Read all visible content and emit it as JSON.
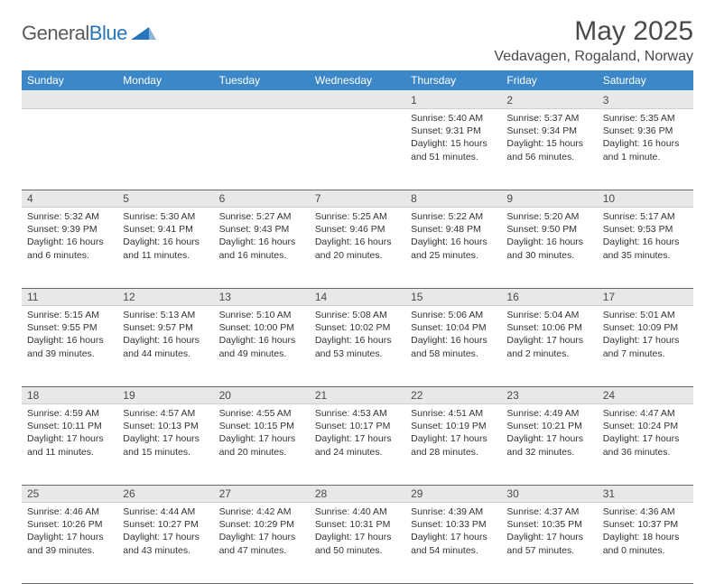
{
  "logo": {
    "general": "General",
    "blue": "Blue"
  },
  "title": "May 2025",
  "location": "Vedavagen, Rogaland, Norway",
  "headers": [
    "Sunday",
    "Monday",
    "Tuesday",
    "Wednesday",
    "Thursday",
    "Friday",
    "Saturday"
  ],
  "colors": {
    "header_bg": "#3b87c8",
    "header_fg": "#ffffff",
    "daynum_bg": "#e8e8e8",
    "text": "#333333",
    "title": "#4a4a4a",
    "rule": "#6b6b6b",
    "logo_shape": "#2776bb"
  },
  "weeks": [
    [
      null,
      null,
      null,
      null,
      {
        "n": "1",
        "sr": "5:40 AM",
        "ss": "9:31 PM",
        "dl": "15 hours and 51 minutes."
      },
      {
        "n": "2",
        "sr": "5:37 AM",
        "ss": "9:34 PM",
        "dl": "15 hours and 56 minutes."
      },
      {
        "n": "3",
        "sr": "5:35 AM",
        "ss": "9:36 PM",
        "dl": "16 hours and 1 minute."
      }
    ],
    [
      {
        "n": "4",
        "sr": "5:32 AM",
        "ss": "9:39 PM",
        "dl": "16 hours and 6 minutes."
      },
      {
        "n": "5",
        "sr": "5:30 AM",
        "ss": "9:41 PM",
        "dl": "16 hours and 11 minutes."
      },
      {
        "n": "6",
        "sr": "5:27 AM",
        "ss": "9:43 PM",
        "dl": "16 hours and 16 minutes."
      },
      {
        "n": "7",
        "sr": "5:25 AM",
        "ss": "9:46 PM",
        "dl": "16 hours and 20 minutes."
      },
      {
        "n": "8",
        "sr": "5:22 AM",
        "ss": "9:48 PM",
        "dl": "16 hours and 25 minutes."
      },
      {
        "n": "9",
        "sr": "5:20 AM",
        "ss": "9:50 PM",
        "dl": "16 hours and 30 minutes."
      },
      {
        "n": "10",
        "sr": "5:17 AM",
        "ss": "9:53 PM",
        "dl": "16 hours and 35 minutes."
      }
    ],
    [
      {
        "n": "11",
        "sr": "5:15 AM",
        "ss": "9:55 PM",
        "dl": "16 hours and 39 minutes."
      },
      {
        "n": "12",
        "sr": "5:13 AM",
        "ss": "9:57 PM",
        "dl": "16 hours and 44 minutes."
      },
      {
        "n": "13",
        "sr": "5:10 AM",
        "ss": "10:00 PM",
        "dl": "16 hours and 49 minutes."
      },
      {
        "n": "14",
        "sr": "5:08 AM",
        "ss": "10:02 PM",
        "dl": "16 hours and 53 minutes."
      },
      {
        "n": "15",
        "sr": "5:06 AM",
        "ss": "10:04 PM",
        "dl": "16 hours and 58 minutes."
      },
      {
        "n": "16",
        "sr": "5:04 AM",
        "ss": "10:06 PM",
        "dl": "17 hours and 2 minutes."
      },
      {
        "n": "17",
        "sr": "5:01 AM",
        "ss": "10:09 PM",
        "dl": "17 hours and 7 minutes."
      }
    ],
    [
      {
        "n": "18",
        "sr": "4:59 AM",
        "ss": "10:11 PM",
        "dl": "17 hours and 11 minutes."
      },
      {
        "n": "19",
        "sr": "4:57 AM",
        "ss": "10:13 PM",
        "dl": "17 hours and 15 minutes."
      },
      {
        "n": "20",
        "sr": "4:55 AM",
        "ss": "10:15 PM",
        "dl": "17 hours and 20 minutes."
      },
      {
        "n": "21",
        "sr": "4:53 AM",
        "ss": "10:17 PM",
        "dl": "17 hours and 24 minutes."
      },
      {
        "n": "22",
        "sr": "4:51 AM",
        "ss": "10:19 PM",
        "dl": "17 hours and 28 minutes."
      },
      {
        "n": "23",
        "sr": "4:49 AM",
        "ss": "10:21 PM",
        "dl": "17 hours and 32 minutes."
      },
      {
        "n": "24",
        "sr": "4:47 AM",
        "ss": "10:24 PM",
        "dl": "17 hours and 36 minutes."
      }
    ],
    [
      {
        "n": "25",
        "sr": "4:46 AM",
        "ss": "10:26 PM",
        "dl": "17 hours and 39 minutes."
      },
      {
        "n": "26",
        "sr": "4:44 AM",
        "ss": "10:27 PM",
        "dl": "17 hours and 43 minutes."
      },
      {
        "n": "27",
        "sr": "4:42 AM",
        "ss": "10:29 PM",
        "dl": "17 hours and 47 minutes."
      },
      {
        "n": "28",
        "sr": "4:40 AM",
        "ss": "10:31 PM",
        "dl": "17 hours and 50 minutes."
      },
      {
        "n": "29",
        "sr": "4:39 AM",
        "ss": "10:33 PM",
        "dl": "17 hours and 54 minutes."
      },
      {
        "n": "30",
        "sr": "4:37 AM",
        "ss": "10:35 PM",
        "dl": "17 hours and 57 minutes."
      },
      {
        "n": "31",
        "sr": "4:36 AM",
        "ss": "10:37 PM",
        "dl": "18 hours and 0 minutes."
      }
    ]
  ],
  "labels": {
    "sunrise": "Sunrise: ",
    "sunset": "Sunset: ",
    "daylight": "Daylight: "
  }
}
